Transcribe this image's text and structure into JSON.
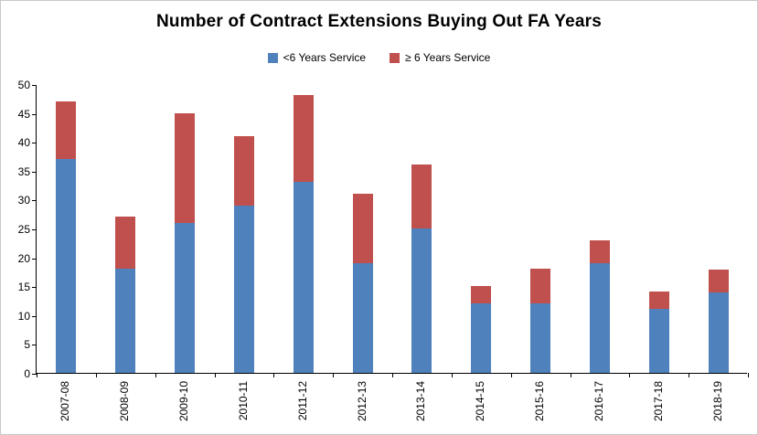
{
  "chart_data": {
    "type": "bar",
    "stacked": true,
    "title": "Number of Contract Extensions Buying Out FA Years",
    "categories": [
      "2007-08",
      "2008-09",
      "2009-10",
      "2010-11",
      "2011-12",
      "2012-13",
      "2013-14",
      "2014-15",
      "2015-16",
      "2016-17",
      "2017-18",
      "2018-19"
    ],
    "series": [
      {
        "name": "<6 Years Service",
        "color": "#4F81BD",
        "values": [
          37,
          18,
          26,
          29,
          33,
          19,
          25,
          12,
          12,
          19,
          11,
          14
        ]
      },
      {
        "name": "≥ 6 Years Service",
        "color": "#C0504D",
        "values": [
          10,
          9,
          19,
          12,
          15,
          12,
          11,
          3,
          6,
          4,
          3,
          4
        ]
      }
    ],
    "totals": [
      47,
      27,
      45,
      41,
      48,
      31,
      36,
      15,
      18,
      23,
      14,
      18
    ],
    "xlabel": "",
    "ylabel": "",
    "ylim": [
      0,
      50
    ],
    "ytick_step": 5,
    "grid": false,
    "legend_position": "top",
    "x_label_rotation": 90
  },
  "style": {
    "axis_color": "#000000",
    "background": "#ffffff",
    "border_color": "#c9c9c9"
  }
}
